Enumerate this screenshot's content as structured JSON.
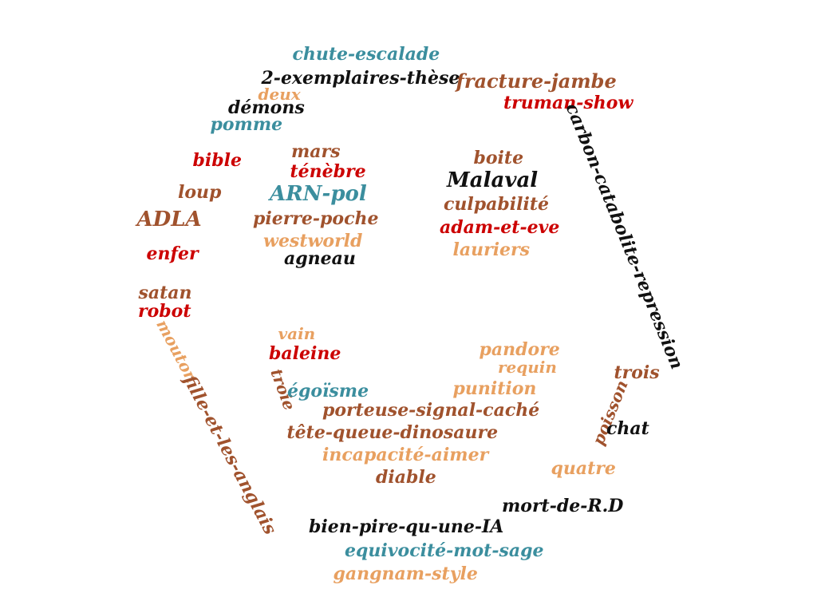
{
  "palette": {
    "brown": "#a0522d",
    "red": "#cc0000",
    "teal": "#3b8e9e",
    "orange": "#e8a060",
    "black": "#111111"
  },
  "words": [
    {
      "text": "chute-escalade",
      "color": "teal"
    },
    {
      "text": "2-exemplaires-thèse",
      "color": "black"
    },
    {
      "text": "fracture-jambe",
      "color": "brown"
    },
    {
      "text": "truman-show",
      "color": "red"
    },
    {
      "text": "deux",
      "color": "orange"
    },
    {
      "text": "démons",
      "color": "black"
    },
    {
      "text": "pomme",
      "color": "teal"
    },
    {
      "text": "bible",
      "color": "red"
    },
    {
      "text": "loup",
      "color": "brown"
    },
    {
      "text": "ADLA",
      "color": "brown"
    },
    {
      "text": "enfer",
      "color": "red"
    },
    {
      "text": "satan",
      "color": "brown"
    },
    {
      "text": "robot",
      "color": "red"
    },
    {
      "text": "mouton",
      "color": "orange"
    },
    {
      "text": "fille-et-les-anglais",
      "color": "brown"
    },
    {
      "text": "mars",
      "color": "brown"
    },
    {
      "text": "ténèbre",
      "color": "red"
    },
    {
      "text": "ARN-pol",
      "color": "teal"
    },
    {
      "text": "pierre-poche",
      "color": "brown"
    },
    {
      "text": "westworld",
      "color": "orange"
    },
    {
      "text": "agneau",
      "color": "black"
    },
    {
      "text": "boite",
      "color": "brown"
    },
    {
      "text": "Malaval",
      "color": "black"
    },
    {
      "text": "culpabilité",
      "color": "brown"
    },
    {
      "text": "adam-et-eve",
      "color": "red"
    },
    {
      "text": "lauriers",
      "color": "orange"
    },
    {
      "text": "carbon-catabolite-repression",
      "color": "black"
    },
    {
      "text": "vain",
      "color": "orange"
    },
    {
      "text": "baleine",
      "color": "red"
    },
    {
      "text": "troie",
      "color": "brown"
    },
    {
      "text": "égoïsme",
      "color": "teal"
    },
    {
      "text": "pandore",
      "color": "orange"
    },
    {
      "text": "requin",
      "color": "orange"
    },
    {
      "text": "punition",
      "color": "orange"
    },
    {
      "text": "porteuse-signal-caché",
      "color": "brown"
    },
    {
      "text": "tête-queue-dinosaure",
      "color": "brown"
    },
    {
      "text": "incapacité-aimer",
      "color": "orange"
    },
    {
      "text": "diable",
      "color": "brown"
    },
    {
      "text": "trois",
      "color": "brown"
    },
    {
      "text": "poisson",
      "color": "brown"
    },
    {
      "text": "chat",
      "color": "black"
    },
    {
      "text": "quatre",
      "color": "orange"
    },
    {
      "text": "mort-de-R.D",
      "color": "black"
    },
    {
      "text": "bien-pire-qu-une-IA",
      "color": "black"
    },
    {
      "text": "equivocité-mot-sage",
      "color": "teal"
    },
    {
      "text": "gangnam-style",
      "color": "orange"
    }
  ]
}
